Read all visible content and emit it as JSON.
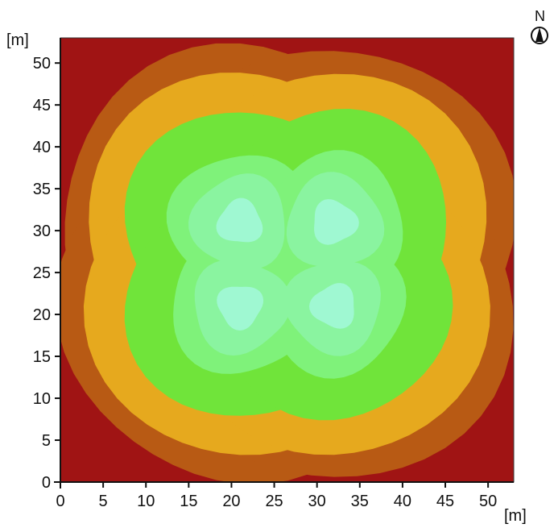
{
  "chart_data": {
    "type": "contour",
    "title": "",
    "xlabel": "[m]",
    "ylabel": "[m]",
    "xlim": [
      0,
      53
    ],
    "ylim": [
      0,
      53
    ],
    "xticks": [
      0,
      5,
      10,
      15,
      20,
      25,
      30,
      35,
      40,
      45,
      50
    ],
    "yticks": [
      0,
      5,
      10,
      15,
      20,
      25,
      30,
      35,
      40,
      45,
      50
    ],
    "grid": false,
    "legend": "none",
    "sources": [
      {
        "x": 21,
        "y": 31
      },
      {
        "x": 32,
        "y": 31
      },
      {
        "x": 21,
        "y": 21
      },
      {
        "x": 32,
        "y": 21
      }
    ],
    "levels": [
      {
        "level": 0,
        "color": "#a01414"
      },
      {
        "level": 1,
        "color": "#b85a14"
      },
      {
        "level": 2,
        "color": "#e6a91e"
      },
      {
        "level": 3,
        "color": "#70e43a"
      },
      {
        "level": 4,
        "color": "#7ff27a"
      },
      {
        "level": 5,
        "color": "#8af4a0"
      },
      {
        "level": 6,
        "color": "#9ff8d2"
      }
    ],
    "north_label": "N"
  }
}
